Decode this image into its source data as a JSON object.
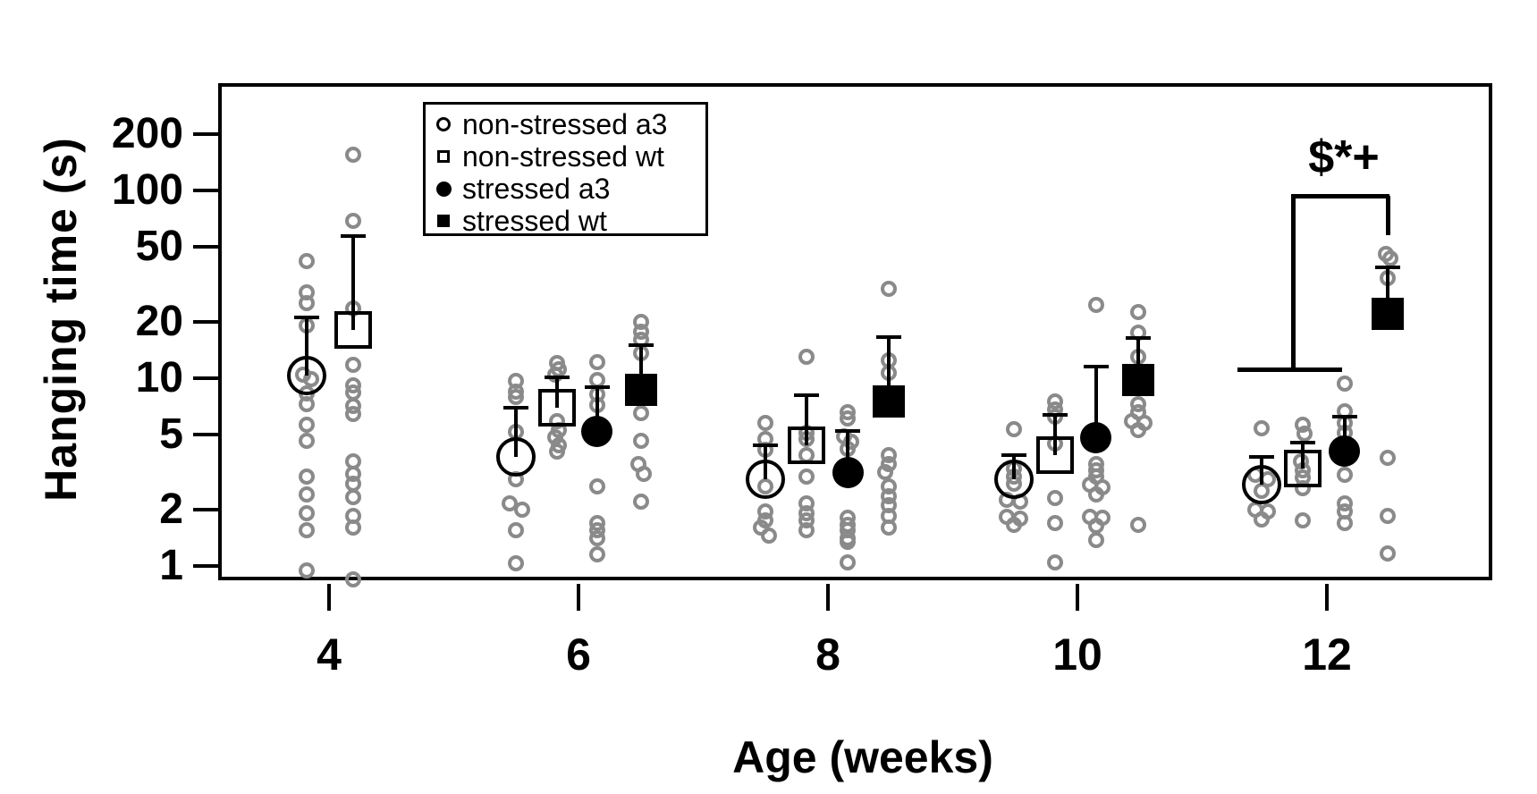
{
  "chart_data": {
    "type": "scatter",
    "title": "",
    "xlabel": "Age (weeks)",
    "ylabel": "Hanging time (s)",
    "x_ticks": [
      4,
      6,
      8,
      10,
      12
    ],
    "y_ticks": [
      200,
      100,
      50,
      20,
      10,
      5,
      2,
      1
    ],
    "y_scale": "log",
    "y_range": [
      0.8,
      365
    ],
    "x_range": [
      3.1,
      13.4
    ],
    "grid": "off",
    "legend_position": "top-left-inside",
    "colors": {
      "marker_black": "#000000",
      "raw_point_gray": "#8a8a8a",
      "background": "#ffffff"
    },
    "legend": [
      {
        "label": "non-stressed a3",
        "marker": "open-circle"
      },
      {
        "label": "non-stressed wt",
        "marker": "open-square"
      },
      {
        "label": "stressed a3",
        "marker": "filled-circle"
      },
      {
        "label": "stressed wt",
        "marker": "filled-square"
      }
    ],
    "series": [
      {
        "name": "non-stressed a3",
        "marker": "open-circle",
        "data": [
          {
            "age": 4,
            "x": 3.82,
            "mean": 10.3,
            "upper": 21,
            "points": [
              [
                42,
                0
              ],
              [
                28.5,
                0
              ],
              [
                25,
                0
              ],
              [
                19,
                0
              ],
              [
                10.45,
                -4
              ],
              [
                9.9,
                5
              ],
              [
                8.3,
                0
              ],
              [
                7.3,
                0
              ],
              [
                5.65,
                0
              ],
              [
                4.65,
                0
              ],
              [
                3.0,
                0
              ],
              [
                2.4,
                0
              ],
              [
                1.9,
                0
              ],
              [
                1.55,
                0
              ],
              [
                0.95,
                0
              ]
            ]
          },
          {
            "age": 6,
            "x": 5.5,
            "mean": 3.8,
            "upper": 7.0,
            "points": [
              [
                9.7,
                0
              ],
              [
                8.5,
                0
              ],
              [
                7.9,
                0
              ],
              [
                5.2,
                0
              ],
              [
                2.9,
                0
              ],
              [
                2.15,
                -7
              ],
              [
                2.0,
                7
              ],
              [
                1.55,
                0
              ],
              [
                1.03,
                0
              ]
            ]
          },
          {
            "age": 8,
            "x": 7.5,
            "mean": 2.9,
            "upper": 4.4,
            "points": [
              [
                5.8,
                0
              ],
              [
                4.75,
                0
              ],
              [
                4.15,
                0
              ],
              [
                2.65,
                0
              ],
              [
                1.95,
                0
              ],
              [
                1.75,
                0
              ],
              [
                1.6,
                -5
              ],
              [
                1.45,
                4
              ]
            ]
          },
          {
            "age": 10,
            "x": 9.49,
            "mean": 2.9,
            "upper": 3.9,
            "points": [
              [
                5.35,
                0
              ],
              [
                3.3,
                0
              ],
              [
                3.0,
                0
              ],
              [
                2.75,
                0
              ],
              [
                2.25,
                -8
              ],
              [
                2.2,
                7
              ],
              [
                1.82,
                -8
              ],
              [
                1.78,
                7
              ],
              [
                1.65,
                0
              ]
            ]
          },
          {
            "age": 12,
            "x": 11.48,
            "mean": 2.7,
            "upper": 3.8,
            "points": [
              [
                5.4,
                0
              ],
              [
                3.05,
                -7
              ],
              [
                2.9,
                7
              ],
              [
                2.5,
                0
              ],
              [
                2.0,
                -7
              ],
              [
                1.95,
                7
              ],
              [
                1.77,
                0
              ]
            ]
          }
        ]
      },
      {
        "name": "non-stressed wt",
        "marker": "open-square",
        "data": [
          {
            "age": 4,
            "x": 4.19,
            "mean": 18,
            "upper": 57,
            "points": [
              [
                155,
                0
              ],
              [
                69,
                0
              ],
              [
                23.5,
                0
              ],
              [
                11.75,
                0
              ],
              [
                9.15,
                0
              ],
              [
                8.4,
                0
              ],
              [
                7.1,
                0
              ],
              [
                6.45,
                0
              ],
              [
                3.6,
                0
              ],
              [
                3.1,
                0
              ],
              [
                2.75,
                0
              ],
              [
                2.33,
                0
              ],
              [
                1.85,
                0
              ],
              [
                1.6,
                0
              ],
              [
                0.85,
                0
              ]
            ]
          },
          {
            "age": 6,
            "x": 5.83,
            "mean": 7.0,
            "upper": 10.1,
            "points": [
              [
                12,
                0
              ],
              [
                11.1,
                2
              ],
              [
                10.4,
                -2
              ],
              [
                5.9,
                0
              ],
              [
                5.3,
                2
              ],
              [
                4.85,
                -2
              ],
              [
                4.4,
                2
              ],
              [
                4.05,
                0
              ]
            ]
          },
          {
            "age": 8,
            "x": 7.83,
            "mean": 4.4,
            "upper": 8.15,
            "points": [
              [
                13,
                0
              ],
              [
                5.1,
                0
              ],
              [
                4.75,
                0
              ],
              [
                3.9,
                0
              ],
              [
                3.0,
                0
              ],
              [
                2.15,
                0
              ],
              [
                1.9,
                0
              ],
              [
                1.75,
                0
              ],
              [
                1.55,
                0
              ]
            ]
          },
          {
            "age": 10,
            "x": 9.82,
            "mean": 3.9,
            "upper": 6.35,
            "points": [
              [
                7.5,
                0
              ],
              [
                6.85,
                0
              ],
              [
                6.25,
                0
              ],
              [
                4.5,
                0
              ],
              [
                2.3,
                0
              ],
              [
                1.7,
                0
              ],
              [
                1.05,
                0
              ]
            ]
          },
          {
            "age": 12,
            "x": 11.81,
            "mean": 3.3,
            "upper": 4.55,
            "points": [
              [
                5.65,
                0
              ],
              [
                5.05,
                2
              ],
              [
                3.6,
                -2
              ],
              [
                3.25,
                0
              ],
              [
                2.95,
                0
              ],
              [
                2.6,
                0
              ],
              [
                1.75,
                0
              ]
            ]
          }
        ]
      },
      {
        "name": "stressed a3",
        "marker": "filled-circle",
        "data": [
          {
            "age": 6,
            "x": 6.15,
            "mean": 5.2,
            "upper": 9.0,
            "points": [
              [
                12.2,
                0
              ],
              [
                9.8,
                0
              ],
              [
                8.2,
                0
              ],
              [
                7.2,
                0
              ],
              [
                2.65,
                0
              ],
              [
                1.7,
                0
              ],
              [
                1.55,
                0
              ],
              [
                1.4,
                0
              ],
              [
                1.15,
                0
              ]
            ]
          },
          {
            "age": 8,
            "x": 8.16,
            "mean": 3.15,
            "upper": 5.25,
            "points": [
              [
                6.6,
                0
              ],
              [
                6.1,
                0
              ],
              [
                4.9,
                -4
              ],
              [
                4.6,
                4
              ],
              [
                4.2,
                0
              ],
              [
                1.8,
                0
              ],
              [
                1.65,
                0
              ],
              [
                1.55,
                0
              ],
              [
                1.4,
                0
              ],
              [
                1.35,
                0
              ],
              [
                1.05,
                0
              ]
            ]
          },
          {
            "age": 10,
            "x": 10.15,
            "mean": 4.8,
            "upper": 11.5,
            "points": [
              [
                24.5,
                0
              ],
              [
                3.5,
                0
              ],
              [
                3.25,
                0
              ],
              [
                3.0,
                0
              ],
              [
                2.7,
                -7
              ],
              [
                2.62,
                7
              ],
              [
                2.4,
                0
              ],
              [
                1.83,
                -7
              ],
              [
                1.8,
                7
              ],
              [
                1.63,
                0
              ],
              [
                1.38,
                0
              ]
            ]
          },
          {
            "age": 12,
            "x": 12.14,
            "mean": 4.1,
            "upper": 6.25,
            "points": [
              [
                9.4,
                0
              ],
              [
                6.65,
                0
              ],
              [
                5.75,
                0
              ],
              [
                5.15,
                0
              ],
              [
                3.05,
                0
              ],
              [
                2.15,
                0
              ],
              [
                1.95,
                0
              ],
              [
                1.7,
                0
              ]
            ]
          }
        ]
      },
      {
        "name": "stressed wt",
        "marker": "filled-square",
        "data": [
          {
            "age": 6,
            "x": 6.5,
            "mean": 8.7,
            "upper": 15,
            "points": [
              [
                20,
                0
              ],
              [
                17.7,
                0
              ],
              [
                16,
                0
              ],
              [
                13.6,
                0
              ],
              [
                6.5,
                0
              ],
              [
                4.65,
                0
              ],
              [
                3.5,
                -3
              ],
              [
                3.1,
                3
              ],
              [
                2.2,
                0
              ]
            ]
          },
          {
            "age": 8,
            "x": 8.49,
            "mean": 7.5,
            "upper": 16.5,
            "points": [
              [
                30,
                0
              ],
              [
                12.5,
                0
              ],
              [
                10.7,
                0
              ],
              [
                3.9,
                0
              ],
              [
                3.5,
                0
              ],
              [
                3.15,
                -4
              ],
              [
                2.65,
                0
              ],
              [
                2.35,
                0
              ],
              [
                2.1,
                0
              ],
              [
                1.85,
                0
              ],
              [
                1.6,
                0
              ]
            ]
          },
          {
            "age": 10,
            "x": 10.49,
            "mean": 9.8,
            "upper": 16.3,
            "points": [
              [
                22.5,
                0
              ],
              [
                17.5,
                0
              ],
              [
                13,
                0
              ],
              [
                7.3,
                0
              ],
              [
                6.6,
                0
              ],
              [
                5.9,
                -7
              ],
              [
                5.8,
                7
              ],
              [
                5.3,
                0
              ],
              [
                1.65,
                0
              ]
            ]
          },
          {
            "age": 12,
            "x": 12.49,
            "mean": 22,
            "upper": 39,
            "points": [
              [
                46,
                -2
              ],
              [
                43.5,
                3
              ],
              [
                34,
                0
              ],
              [
                3.75,
                0
              ],
              [
                1.85,
                0
              ],
              [
                1.17,
                0
              ]
            ]
          }
        ]
      }
    ],
    "annotation": {
      "label": "$*+",
      "age": 12,
      "description": "significance bracket: stressed wt vs the three other groups at week 12",
      "bracket": {
        "bar_value": 11.2,
        "bar_from_week": 11.28,
        "bar_to_week": 12.12,
        "stem_week": 11.73,
        "top_value": 94,
        "target_week": 12.49,
        "target_value": 58
      }
    }
  }
}
